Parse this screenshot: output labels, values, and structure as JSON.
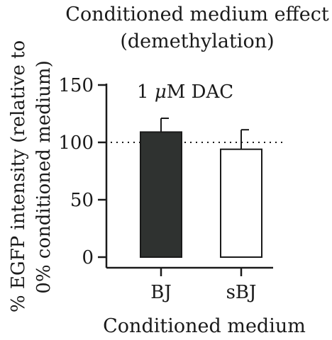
{
  "chart_data": {
    "type": "bar",
    "title": [
      "Conditioned medium effect",
      "(demethylation)"
    ],
    "ylabel": [
      "% EGFP intensity (relative to",
      "0% conditioned medium)"
    ],
    "xlabel": "Conditioned medium",
    "annotation": {
      "prefix": "1 ",
      "mu": "μ",
      "suffix": "M DAC"
    },
    "categories": [
      "BJ",
      "sBJ"
    ],
    "values": [
      109,
      94
    ],
    "errors": [
      12,
      17
    ],
    "bar_colors": [
      "#2f3230",
      "#ffffff"
    ],
    "ylim": [
      0,
      150
    ],
    "yticks": [
      0,
      50,
      100,
      150
    ],
    "reference_line": 100,
    "grid": false,
    "legend": "none"
  }
}
